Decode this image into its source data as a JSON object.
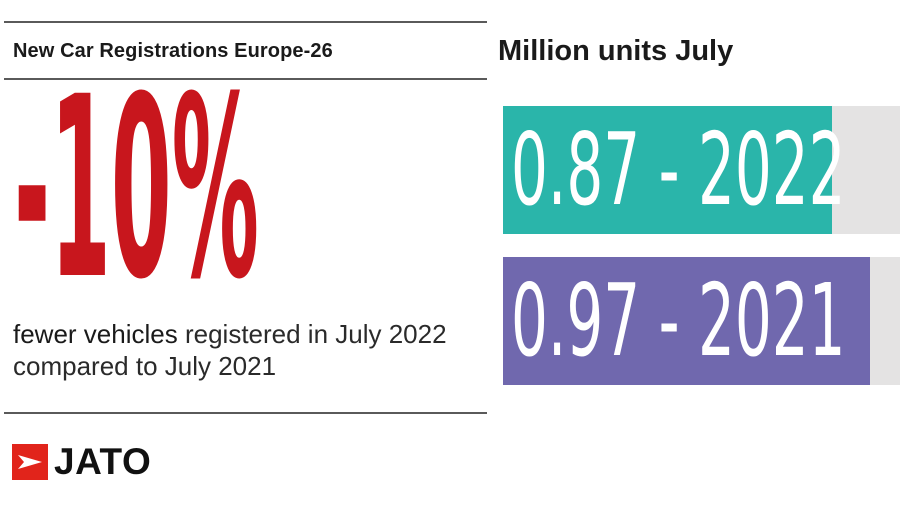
{
  "left": {
    "title": "New Car Registrations Europe-26",
    "headline": "-10%",
    "caption_strong": "fewer vehicles",
    "caption_rest": " registered in July 2022",
    "caption_line2": "compared to July 2021"
  },
  "logo": {
    "text": "JATO"
  },
  "colors": {
    "headline": "#c8161d",
    "bar_2022": "#2ab5aa",
    "bar_2021": "#7068ae",
    "track": "#e4e3e3",
    "logo_mark": "#e1241b"
  },
  "chart_data": {
    "type": "bar",
    "orientation": "horizontal",
    "title": "Million units July",
    "categories": [
      "2022",
      "2021"
    ],
    "values": [
      0.87,
      0.97
    ],
    "labels": [
      "0.87 - 2022",
      "0.97 - 2021"
    ],
    "xlim": [
      0,
      1.05
    ]
  }
}
